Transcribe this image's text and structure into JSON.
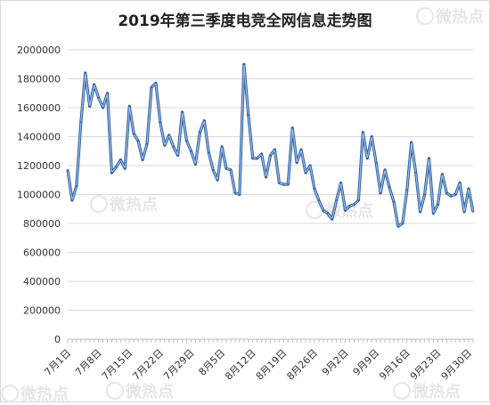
{
  "watermark": "微热点",
  "chart_data": {
    "type": "line",
    "title": "2019年第三季度电竞全网信息走势图",
    "xlabel": "",
    "ylabel": "",
    "ylim": [
      0,
      2000000
    ],
    "yticks": [
      0,
      200000,
      400000,
      600000,
      800000,
      1000000,
      1200000,
      1400000,
      1600000,
      1800000,
      2000000
    ],
    "grid": true,
    "legend": "none",
    "color": "#4a7ec4",
    "xtick_labels": [
      "7月1日",
      "7月8日",
      "7月15日",
      "7月22日",
      "7月29日",
      "8月5日",
      "8月12日",
      "8月19日",
      "8月26日",
      "9月2日",
      "9月9日",
      "9月16日",
      "9月23日",
      "9月30日"
    ],
    "series": [
      {
        "values": [
          1170000,
          960000,
          1060000,
          1500000,
          1840000,
          1610000,
          1760000,
          1670000,
          1600000,
          1700000,
          1150000,
          1190000,
          1240000,
          1180000,
          1610000,
          1420000,
          1370000,
          1240000,
          1350000,
          1740000,
          1770000,
          1500000,
          1340000,
          1410000,
          1330000,
          1270000,
          1570000,
          1370000,
          1300000,
          1210000,
          1430000,
          1510000,
          1290000,
          1170000,
          1100000,
          1330000,
          1180000,
          1170000,
          1010000,
          1000000,
          1900000,
          1550000,
          1250000,
          1250000,
          1280000,
          1120000,
          1270000,
          1310000,
          1080000,
          1070000,
          1070000,
          1460000,
          1220000,
          1310000,
          1150000,
          1200000,
          1040000,
          960000,
          890000,
          870000,
          830000,
          960000,
          1080000,
          890000,
          920000,
          930000,
          960000,
          1430000,
          1250000,
          1400000,
          1220000,
          1010000,
          1170000,
          1050000,
          950000,
          780000,
          800000,
          1030000,
          1360000,
          1150000,
          880000,
          1000000,
          1250000,
          870000,
          930000,
          1140000,
          1010000,
          990000,
          1000000,
          1080000,
          880000,
          1040000,
          880000
        ]
      }
    ]
  }
}
